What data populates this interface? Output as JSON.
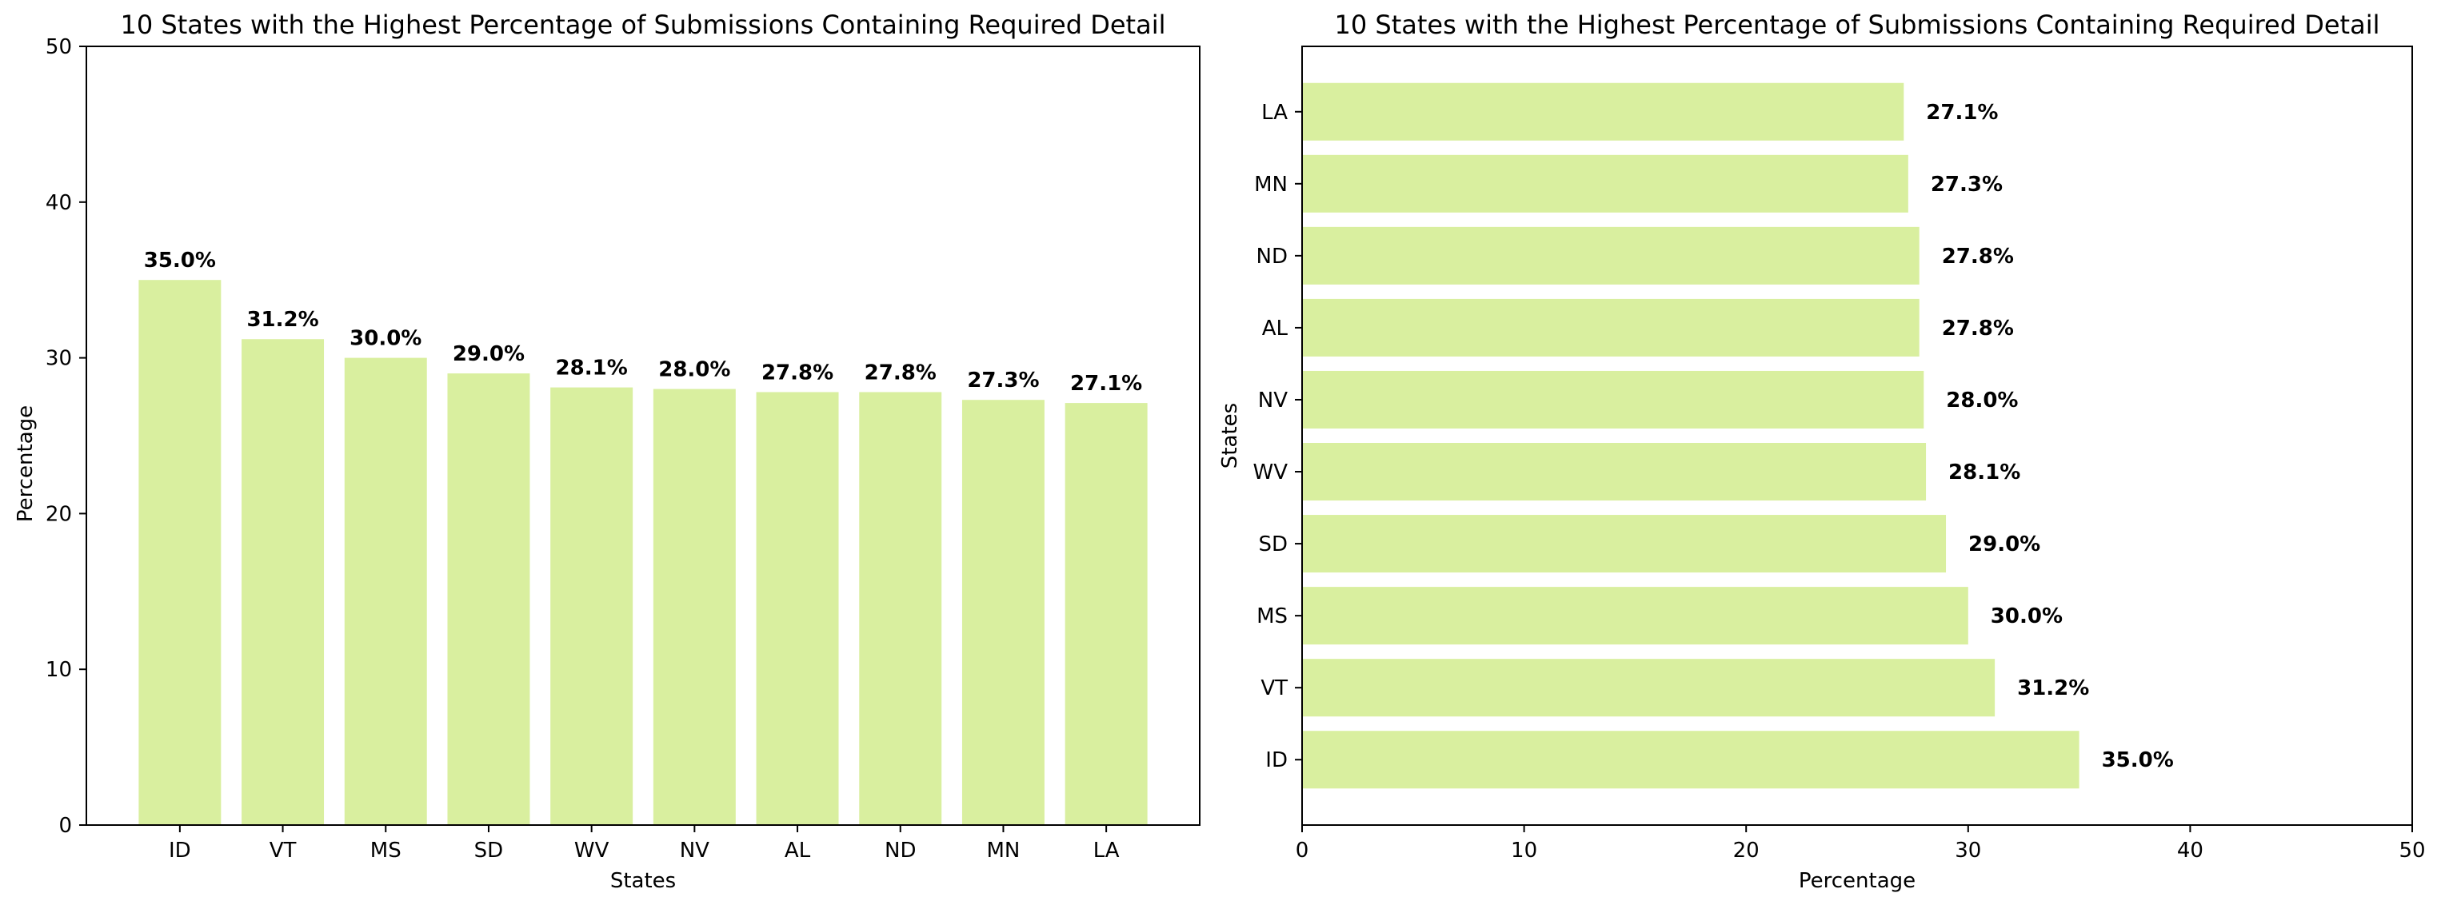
{
  "chart_data": [
    {
      "type": "bar",
      "orientation": "vertical",
      "title": "10 States with the Highest Percentage of Submissions Containing Required Detail",
      "xlabel": "States",
      "ylabel": "Percentage",
      "categories": [
        "ID",
        "VT",
        "MS",
        "SD",
        "WV",
        "NV",
        "AL",
        "ND",
        "MN",
        "LA"
      ],
      "values": [
        35.0,
        31.2,
        30.0,
        29.0,
        28.1,
        28.0,
        27.8,
        27.8,
        27.3,
        27.1
      ],
      "data_labels": [
        "35.0%",
        "31.2%",
        "30.0%",
        "29.0%",
        "28.1%",
        "28.0%",
        "27.8%",
        "27.8%",
        "27.3%",
        "27.1%"
      ],
      "ylim": [
        0,
        50
      ],
      "yticks": [
        0,
        10,
        20,
        30,
        40,
        50
      ],
      "grid": false,
      "bar_color": "#d9ef9f"
    },
    {
      "type": "bar",
      "orientation": "horizontal",
      "title": "10 States with the Highest Percentage of Submissions Containing Required Detail",
      "xlabel": "Percentage",
      "ylabel": "States",
      "categories": [
        "ID",
        "VT",
        "MS",
        "SD",
        "WV",
        "NV",
        "AL",
        "ND",
        "MN",
        "LA"
      ],
      "values": [
        35.0,
        31.2,
        30.0,
        29.0,
        28.1,
        28.0,
        27.8,
        27.8,
        27.3,
        27.1
      ],
      "data_labels": [
        "35.0%",
        "31.2%",
        "30.0%",
        "29.0%",
        "28.1%",
        "28.0%",
        "27.8%",
        "27.8%",
        "27.3%",
        "27.1%"
      ],
      "xlim": [
        0,
        50
      ],
      "xticks": [
        0,
        10,
        20,
        30,
        40,
        50
      ],
      "grid": false,
      "bar_color": "#d9ef9f"
    }
  ]
}
